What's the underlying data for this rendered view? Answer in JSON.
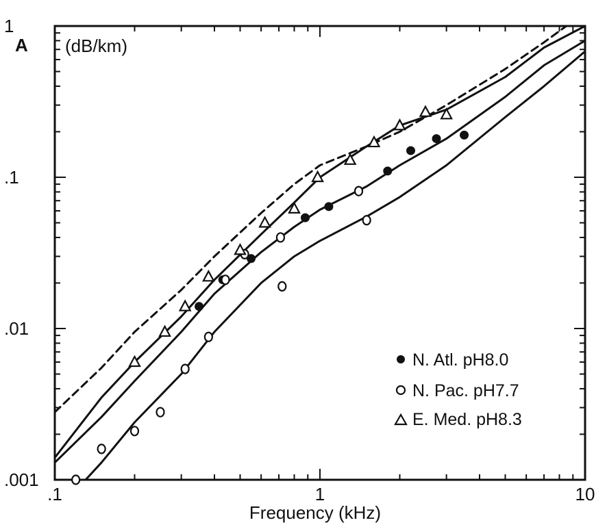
{
  "chart_data": {
    "type": "line",
    "xlabel": "Frequency (kHz)",
    "ylabel_symbol": "A",
    "ylabel_unit": "(dB/km)",
    "xscale": "log",
    "yscale": "log",
    "xlim": [
      0.1,
      10
    ],
    "ylim": [
      0.001,
      1
    ],
    "x_tick_labels": [
      ".1",
      "1",
      "10"
    ],
    "x_tick_values": [
      0.1,
      1,
      10
    ],
    "y_tick_labels": [
      ".001",
      ".01",
      ".1",
      "1"
    ],
    "y_tick_values": [
      0.001,
      0.01,
      0.1,
      1
    ],
    "grid": false,
    "legend_position": "bottom-right",
    "legend": [
      {
        "marker": "filled-circle",
        "label": "N. Atl. pH8.0"
      },
      {
        "marker": "open-circle",
        "label": "N. Pac. pH7.7"
      },
      {
        "marker": "open-triangle",
        "label": "E. Med. pH8.3"
      }
    ],
    "series": [
      {
        "marker": "filled-circle",
        "style": "points",
        "points": [
          [
            0.35,
            0.014
          ],
          [
            0.43,
            0.021
          ],
          [
            0.55,
            0.029
          ],
          [
            0.88,
            0.054
          ],
          [
            1.08,
            0.064
          ],
          [
            1.4,
            0.081
          ],
          [
            1.8,
            0.11
          ],
          [
            2.2,
            0.15
          ],
          [
            2.75,
            0.18
          ],
          [
            3.5,
            0.19
          ]
        ]
      },
      {
        "marker": "open-circle",
        "style": "points",
        "points": [
          [
            0.12,
            0.001
          ],
          [
            0.15,
            0.0016
          ],
          [
            0.2,
            0.0021
          ],
          [
            0.25,
            0.0028
          ],
          [
            0.31,
            0.0054
          ],
          [
            0.38,
            0.0088
          ],
          [
            0.44,
            0.021
          ],
          [
            0.52,
            0.031
          ],
          [
            0.71,
            0.04
          ],
          [
            0.72,
            0.019
          ],
          [
            1.4,
            0.081
          ],
          [
            1.5,
            0.052
          ]
        ]
      },
      {
        "marker": "open-triangle",
        "style": "points",
        "points": [
          [
            0.2,
            0.006
          ],
          [
            0.26,
            0.0095
          ],
          [
            0.31,
            0.014
          ],
          [
            0.38,
            0.022
          ],
          [
            0.5,
            0.033
          ],
          [
            0.62,
            0.05
          ],
          [
            0.8,
            0.062
          ],
          [
            0.98,
            0.1
          ],
          [
            1.3,
            0.13
          ],
          [
            1.6,
            0.17
          ],
          [
            2.0,
            0.22
          ],
          [
            2.5,
            0.27
          ],
          [
            3.0,
            0.26
          ]
        ]
      },
      {
        "style": "dashed",
        "points": [
          [
            0.1,
            0.0028
          ],
          [
            0.15,
            0.0055
          ],
          [
            0.2,
            0.0095
          ],
          [
            0.3,
            0.018
          ],
          [
            0.4,
            0.03
          ],
          [
            0.6,
            0.058
          ],
          [
            0.8,
            0.09
          ],
          [
            1.0,
            0.12
          ],
          [
            1.5,
            0.16
          ],
          [
            2.0,
            0.2
          ],
          [
            3.0,
            0.3
          ],
          [
            5.0,
            0.52
          ],
          [
            7.0,
            0.78
          ],
          [
            8.5,
            1.0
          ]
        ]
      },
      {
        "style": "solid",
        "points": [
          [
            0.1,
            0.0014
          ],
          [
            0.15,
            0.0035
          ],
          [
            0.2,
            0.006
          ],
          [
            0.3,
            0.012
          ],
          [
            0.4,
            0.021
          ],
          [
            0.6,
            0.042
          ],
          [
            0.8,
            0.068
          ],
          [
            1.0,
            0.1
          ],
          [
            1.5,
            0.16
          ],
          [
            2.0,
            0.22
          ],
          [
            3.0,
            0.28
          ],
          [
            5.0,
            0.46
          ],
          [
            7.0,
            0.72
          ],
          [
            10.0,
            1.0
          ]
        ]
      },
      {
        "style": "solid",
        "points": [
          [
            0.1,
            0.0013
          ],
          [
            0.15,
            0.0026
          ],
          [
            0.2,
            0.0045
          ],
          [
            0.3,
            0.0095
          ],
          [
            0.4,
            0.017
          ],
          [
            0.6,
            0.032
          ],
          [
            0.8,
            0.047
          ],
          [
            1.0,
            0.061
          ],
          [
            1.5,
            0.087
          ],
          [
            2.0,
            0.12
          ],
          [
            3.0,
            0.18
          ],
          [
            5.0,
            0.34
          ],
          [
            7.0,
            0.55
          ],
          [
            10.0,
            0.8
          ]
        ]
      },
      {
        "style": "solid",
        "points": [
          [
            0.1,
            0.0006
          ],
          [
            0.15,
            0.0013
          ],
          [
            0.2,
            0.0024
          ],
          [
            0.3,
            0.005
          ],
          [
            0.4,
            0.0095
          ],
          [
            0.6,
            0.02
          ],
          [
            0.8,
            0.03
          ],
          [
            1.0,
            0.038
          ],
          [
            1.5,
            0.055
          ],
          [
            2.0,
            0.074
          ],
          [
            3.0,
            0.12
          ],
          [
            5.0,
            0.25
          ],
          [
            7.0,
            0.4
          ],
          [
            10.0,
            0.68
          ]
        ]
      }
    ]
  }
}
